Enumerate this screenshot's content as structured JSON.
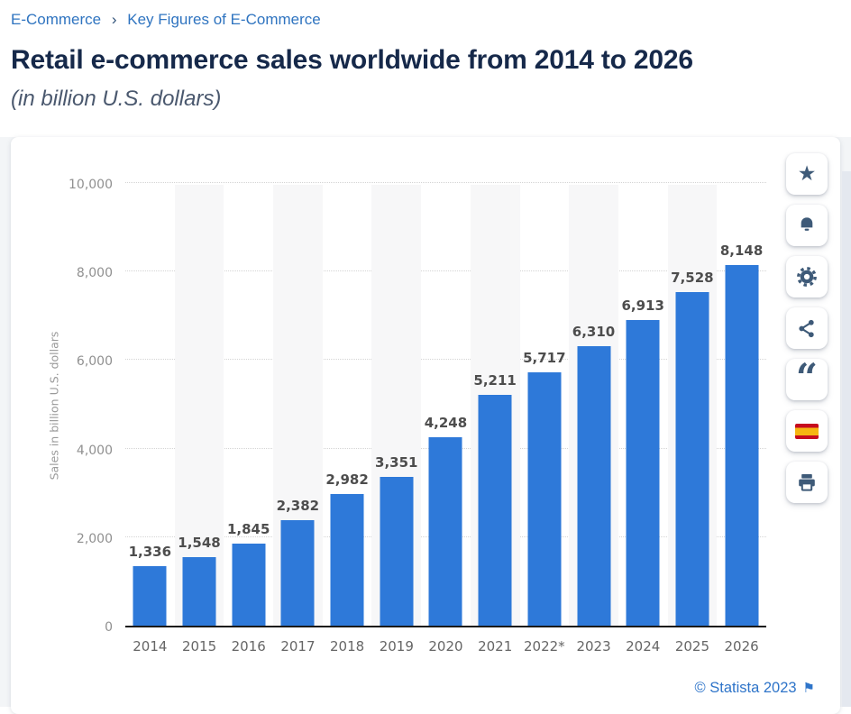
{
  "breadcrumb": {
    "items": [
      "E-Commerce",
      "Key Figures of E-Commerce"
    ],
    "separator": "›"
  },
  "header": {
    "title": "Retail e-commerce sales worldwide from 2014 to 2026",
    "subtitle": "(in billion U.S. dollars)"
  },
  "chart_data": {
    "type": "bar",
    "title": "Retail e-commerce sales worldwide from 2014 to 2026",
    "categories": [
      "2014",
      "2015",
      "2016",
      "2017",
      "2018",
      "2019",
      "2020",
      "2021",
      "2022*",
      "2023",
      "2024",
      "2025",
      "2026"
    ],
    "values": [
      1336,
      1548,
      1845,
      2382,
      2982,
      3351,
      4248,
      5211,
      5717,
      6310,
      6913,
      7528,
      8148
    ],
    "value_labels": [
      "1,336",
      "1,548",
      "1,845",
      "2,382",
      "2,982",
      "3,351",
      "4,248",
      "5,211",
      "5,717",
      "6,310",
      "6,913",
      "7,528",
      "8,148"
    ],
    "xlabel": "",
    "ylabel": "Sales in billion U.S. dollars",
    "ylim": [
      0,
      10000
    ],
    "yticks": [
      0,
      2000,
      4000,
      6000,
      8000,
      10000
    ],
    "ytick_labels": [
      "0",
      "2,000",
      "4,000",
      "6,000",
      "8,000",
      "10,000"
    ],
    "grid": "horizontal-dotted",
    "legend": "none",
    "bar_color": "#2e79d9",
    "band_color": "#f7f7f8"
  },
  "toolbar": {
    "buttons": [
      {
        "id": "favorite",
        "icon": "star-icon",
        "glyph": "★"
      },
      {
        "id": "notifications",
        "icon": "bell-icon"
      },
      {
        "id": "settings",
        "icon": "gear-icon"
      },
      {
        "id": "share",
        "icon": "share-icon"
      },
      {
        "id": "cite",
        "icon": "quote-icon",
        "glyph": "“"
      },
      {
        "id": "language-spanish",
        "icon": "spain-flag-icon"
      },
      {
        "id": "print",
        "icon": "printer-icon"
      }
    ]
  },
  "footer": {
    "copyright": "© Statista 2023",
    "flag_glyph": "⚑"
  },
  "colors": {
    "accent_link_blue": "#2f74c0",
    "title_navy": "#16294a",
    "bar_blue": "#2e79d9",
    "icon_navy": "#3e5a78",
    "page_background": "#f3f5f7",
    "flag_red": "#c60b1e",
    "flag_yellow": "#f6b511"
  }
}
